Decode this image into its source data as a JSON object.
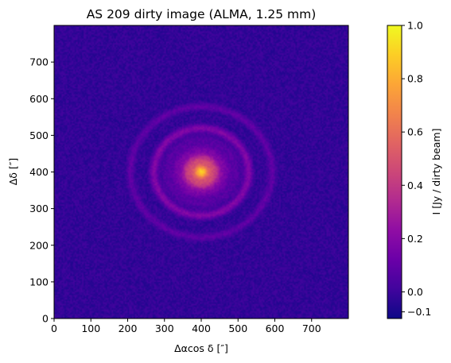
{
  "chart_data": {
    "type": "heatmap",
    "title": "AS 209 dirty image (ALMA, 1.25 mm)",
    "xlabel": "Δαcos δ [″]",
    "ylabel": "Δδ [″]",
    "xlim": [
      0,
      800
    ],
    "ylim": [
      0,
      800
    ],
    "xticks": [
      0,
      100,
      200,
      300,
      400,
      500,
      600,
      700
    ],
    "yticks": [
      0,
      100,
      200,
      300,
      400,
      500,
      600,
      700
    ],
    "colormap": "plasma",
    "colorbar": {
      "label": "I [Jy / dirty beam]",
      "range": [
        -0.1,
        1.0
      ],
      "ticks": [
        "0.0",
        "0.2",
        "0.4",
        "0.6",
        "0.8",
        "1.0"
      ],
      "tick_values": [
        0.0,
        0.2,
        0.4,
        0.6,
        0.8,
        1.0
      ],
      "extra_tick": "−0.1"
    },
    "source": {
      "center": [
        400,
        400
      ],
      "peak": 1.0,
      "background": -0.02,
      "features": [
        {
          "kind": "core",
          "radius": 8,
          "intensity": 0.95
        },
        {
          "kind": "inner disk",
          "radius": 50,
          "intensity": 0.55
        },
        {
          "kind": "gap",
          "radius": 120,
          "intensity": 0.02
        },
        {
          "kind": "ring",
          "radius": 135,
          "intensity": 0.22
        },
        {
          "kind": "gap",
          "radius": 165,
          "intensity": 0.0
        },
        {
          "kind": "outer ring",
          "radius": 190,
          "intensity": 0.12
        }
      ]
    }
  }
}
